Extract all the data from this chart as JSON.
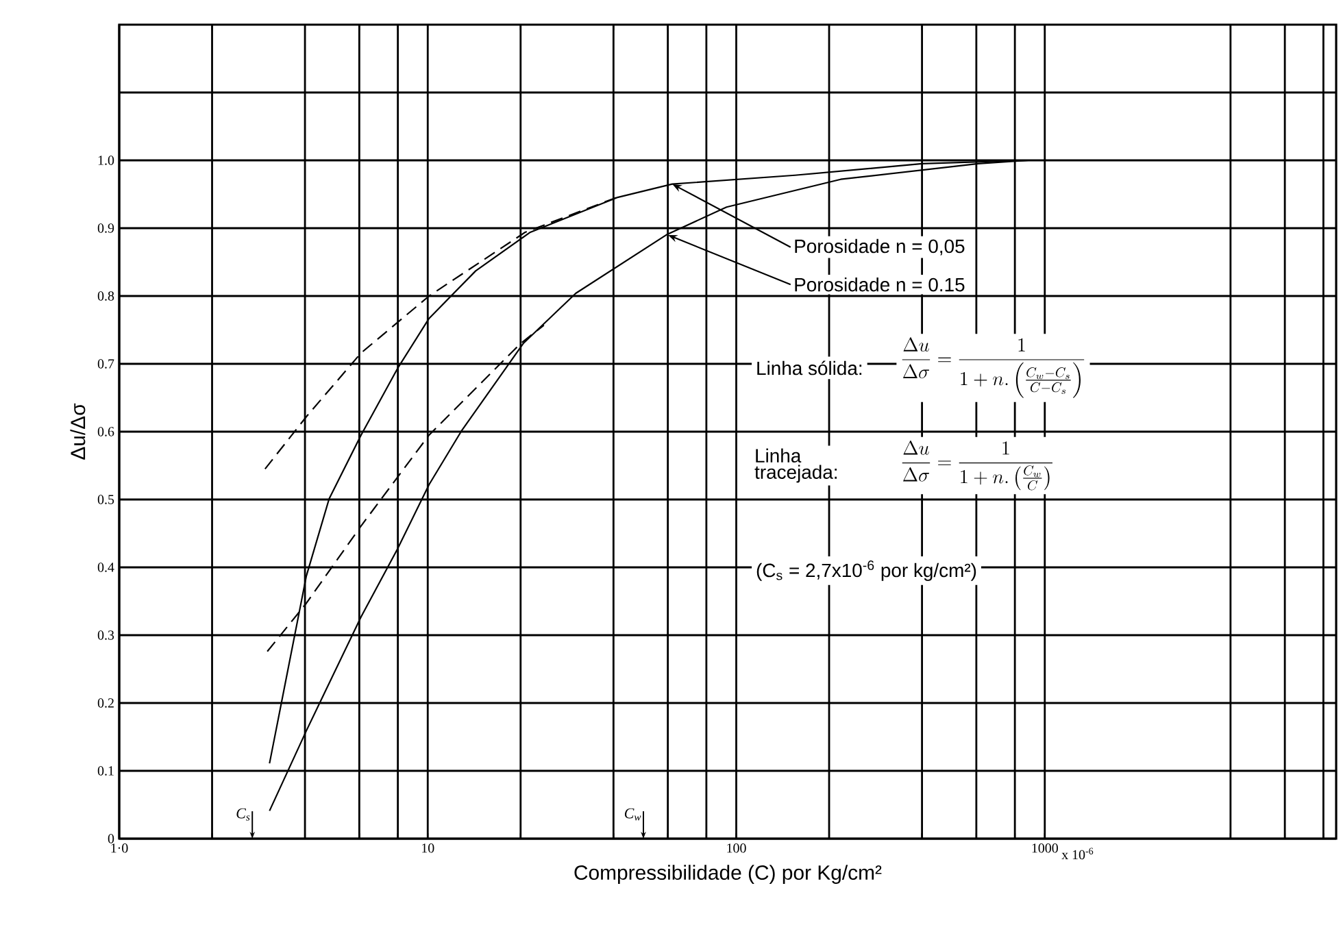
{
  "chart_data": {
    "type": "line",
    "xlabel": "Compressibilidade (C) por Kg/cm²",
    "ylabel": "Δu/Δσ",
    "log": "x",
    "grid": true,
    "marker": "none",
    "xlim": [
      1,
      8800
    ],
    "ylim": [
      0,
      1.2
    ],
    "xticks": [
      {
        "value": 1,
        "label": "1·0"
      },
      {
        "value": 2,
        "label": null
      },
      {
        "value": 4,
        "label": null
      },
      {
        "value": 6,
        "label": null
      },
      {
        "value": 8,
        "label": null
      },
      10,
      {
        "value": 20,
        "label": null
      },
      {
        "value": 40,
        "label": null
      },
      {
        "value": 60,
        "label": null
      },
      {
        "value": 80,
        "label": null
      },
      100,
      {
        "value": 200,
        "label": null
      },
      {
        "value": 400,
        "label": null
      },
      {
        "value": 600,
        "label": null
      },
      {
        "value": 800,
        "label": null
      },
      1000,
      {
        "value": 4000,
        "label": null
      },
      {
        "value": 6000,
        "label": null
      },
      {
        "value": 8000,
        "label": null
      }
    ],
    "yticks": [
      0,
      0.1,
      0.2,
      0.3,
      0.4,
      0.5,
      0.6,
      0.7,
      0.8,
      0.9,
      {
        "value": 1,
        "label": "1.0"
      },
      {
        "value": 1.1,
        "label": null
      }
    ],
    "series": [
      {
        "color": "#000000",
        "line_style": "solid",
        "x": [
          3.07,
          4.04,
          4.79,
          6.08,
          7.98,
          10.1,
          14.3,
          21.5,
          41,
          62,
          155,
          400,
          885
        ],
        "values": [
          0.111,
          0.387,
          0.501,
          0.595,
          0.693,
          0.767,
          0.837,
          0.894,
          0.945,
          0.965,
          0.978,
          0.995,
          1.0
        ]
      },
      {
        "color": "#000000",
        "line_style": "dashed",
        "x": [
          2.97,
          4.04,
          6.08,
          10.1,
          20.7,
          42.5
        ],
        "values": [
          0.545,
          0.622,
          0.716,
          0.8,
          0.894,
          0.948
        ]
      },
      {
        "color": "#000000",
        "line_style": "solid",
        "x": [
          3.07,
          4.04,
          6.08,
          7.98,
          10.1,
          12.9,
          20.4,
          30.2,
          59.8,
          93,
          218,
          608,
          885
        ],
        "values": [
          0.041,
          0.159,
          0.327,
          0.427,
          0.522,
          0.602,
          0.73,
          0.804,
          0.891,
          0.931,
          0.972,
          0.995,
          1.0
        ]
      },
      {
        "color": "#000000",
        "line_style": "dashed",
        "x": [
          3.02,
          4.04,
          6.08,
          10.1,
          20,
          23.8
        ],
        "values": [
          0.276,
          0.347,
          0.461,
          0.595,
          0.73,
          0.757
        ]
      }
    ],
    "annotations": [
      {
        "text": "Porosidade n = 0,05",
        "x": 62,
        "y": 0.965
      },
      {
        "text": "Porosidade n = 0.15",
        "x": 60,
        "y": 0.89
      },
      "Linha sólida:",
      "\\frac{\\Delta u}{\\Delta \\sigma}=\\frac{1}{1+n.\\left(\\frac{C_w-C_s}{C-C_s}\\right)}",
      "Linha tracejada:",
      "\\frac{\\Delta u}{\\Delta \\sigma}=\\frac{1}{1+n.\\left(\\frac{C_w}{C}\\right)}",
      "(C$_{s}$ = 2,7x10$^{-6}$ por kg/cm²)",
      "C$_{s}$",
      "C$_{w}$",
      "x 10$^{-6}$"
    ]
  }
}
